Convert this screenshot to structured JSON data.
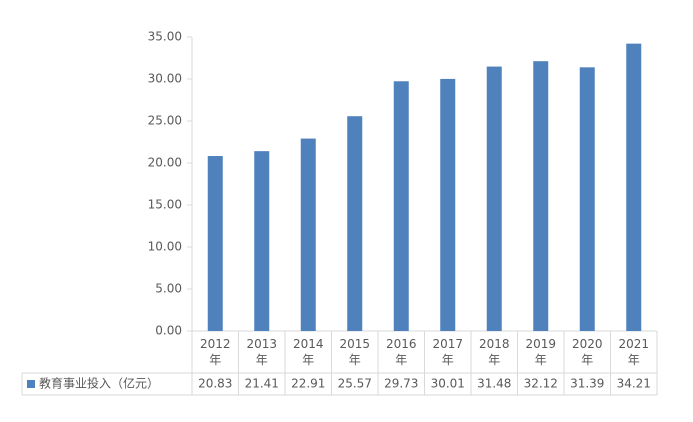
{
  "chart_data": {
    "type": "bar",
    "categories": [
      "2012年",
      "2013年",
      "2014年",
      "2015年",
      "2016年",
      "2017年",
      "2018年",
      "2019年",
      "2020年",
      "2021年"
    ],
    "series": [
      {
        "name": "教育事业投入（亿元）",
        "color": "#4f81bd",
        "values": [
          20.83,
          21.41,
          22.91,
          25.57,
          29.73,
          30.01,
          31.48,
          32.12,
          31.39,
          34.21
        ]
      }
    ],
    "ylim": [
      0,
      35
    ],
    "yticks": [
      {
        "value": 0,
        "label": "0.00"
      },
      {
        "value": 5,
        "label": "5.00"
      },
      {
        "value": 10,
        "label": "10.00"
      },
      {
        "value": 15,
        "label": "15.00"
      },
      {
        "value": 20,
        "label": "20.00"
      },
      {
        "value": 25,
        "label": "25.00"
      },
      {
        "value": 30,
        "label": "30.00"
      },
      {
        "value": 35,
        "label": "35.00"
      }
    ],
    "grid": false,
    "data_table": true
  }
}
